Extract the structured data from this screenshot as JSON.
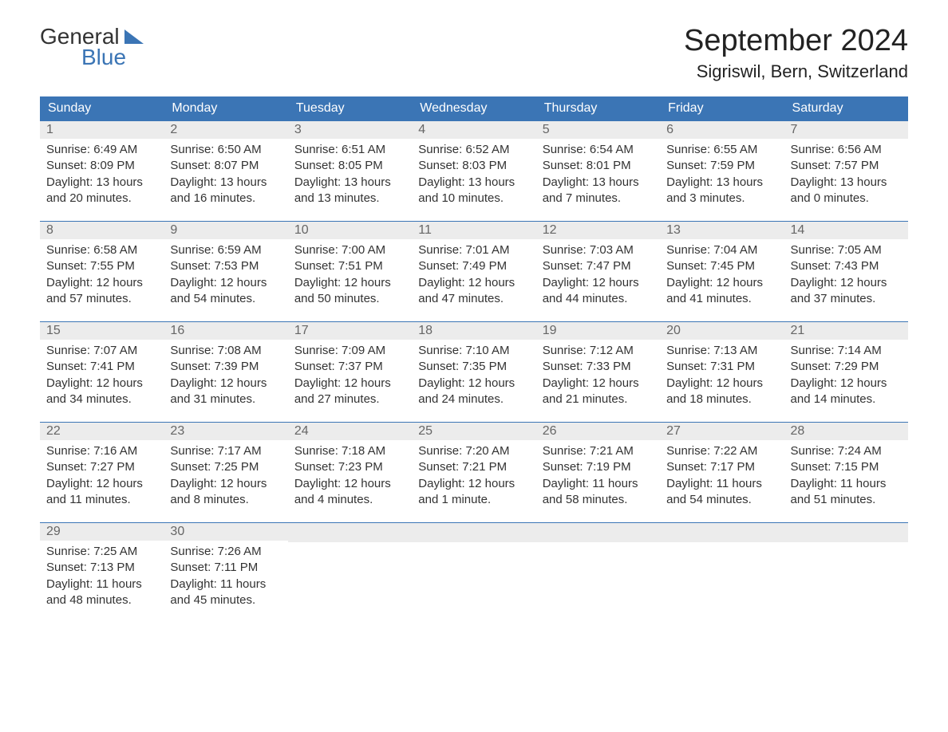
{
  "logo": {
    "text_general": "General",
    "text_blue": "Blue"
  },
  "title": "September 2024",
  "location": "Sigriswil, Bern, Switzerland",
  "colors": {
    "header_bg": "#3b75b5",
    "header_text": "#ffffff",
    "daybar_bg": "#ececec",
    "daybar_text": "#666666",
    "body_text": "#333333",
    "border": "#3b75b5"
  },
  "weekdays": [
    "Sunday",
    "Monday",
    "Tuesday",
    "Wednesday",
    "Thursday",
    "Friday",
    "Saturday"
  ],
  "weeks": [
    [
      {
        "day": "1",
        "sunrise": "Sunrise: 6:49 AM",
        "sunset": "Sunset: 8:09 PM",
        "daylight1": "Daylight: 13 hours",
        "daylight2": "and 20 minutes."
      },
      {
        "day": "2",
        "sunrise": "Sunrise: 6:50 AM",
        "sunset": "Sunset: 8:07 PM",
        "daylight1": "Daylight: 13 hours",
        "daylight2": "and 16 minutes."
      },
      {
        "day": "3",
        "sunrise": "Sunrise: 6:51 AM",
        "sunset": "Sunset: 8:05 PM",
        "daylight1": "Daylight: 13 hours",
        "daylight2": "and 13 minutes."
      },
      {
        "day": "4",
        "sunrise": "Sunrise: 6:52 AM",
        "sunset": "Sunset: 8:03 PM",
        "daylight1": "Daylight: 13 hours",
        "daylight2": "and 10 minutes."
      },
      {
        "day": "5",
        "sunrise": "Sunrise: 6:54 AM",
        "sunset": "Sunset: 8:01 PM",
        "daylight1": "Daylight: 13 hours",
        "daylight2": "and 7 minutes."
      },
      {
        "day": "6",
        "sunrise": "Sunrise: 6:55 AM",
        "sunset": "Sunset: 7:59 PM",
        "daylight1": "Daylight: 13 hours",
        "daylight2": "and 3 minutes."
      },
      {
        "day": "7",
        "sunrise": "Sunrise: 6:56 AM",
        "sunset": "Sunset: 7:57 PM",
        "daylight1": "Daylight: 13 hours",
        "daylight2": "and 0 minutes."
      }
    ],
    [
      {
        "day": "8",
        "sunrise": "Sunrise: 6:58 AM",
        "sunset": "Sunset: 7:55 PM",
        "daylight1": "Daylight: 12 hours",
        "daylight2": "and 57 minutes."
      },
      {
        "day": "9",
        "sunrise": "Sunrise: 6:59 AM",
        "sunset": "Sunset: 7:53 PM",
        "daylight1": "Daylight: 12 hours",
        "daylight2": "and 54 minutes."
      },
      {
        "day": "10",
        "sunrise": "Sunrise: 7:00 AM",
        "sunset": "Sunset: 7:51 PM",
        "daylight1": "Daylight: 12 hours",
        "daylight2": "and 50 minutes."
      },
      {
        "day": "11",
        "sunrise": "Sunrise: 7:01 AM",
        "sunset": "Sunset: 7:49 PM",
        "daylight1": "Daylight: 12 hours",
        "daylight2": "and 47 minutes."
      },
      {
        "day": "12",
        "sunrise": "Sunrise: 7:03 AM",
        "sunset": "Sunset: 7:47 PM",
        "daylight1": "Daylight: 12 hours",
        "daylight2": "and 44 minutes."
      },
      {
        "day": "13",
        "sunrise": "Sunrise: 7:04 AM",
        "sunset": "Sunset: 7:45 PM",
        "daylight1": "Daylight: 12 hours",
        "daylight2": "and 41 minutes."
      },
      {
        "day": "14",
        "sunrise": "Sunrise: 7:05 AM",
        "sunset": "Sunset: 7:43 PM",
        "daylight1": "Daylight: 12 hours",
        "daylight2": "and 37 minutes."
      }
    ],
    [
      {
        "day": "15",
        "sunrise": "Sunrise: 7:07 AM",
        "sunset": "Sunset: 7:41 PM",
        "daylight1": "Daylight: 12 hours",
        "daylight2": "and 34 minutes."
      },
      {
        "day": "16",
        "sunrise": "Sunrise: 7:08 AM",
        "sunset": "Sunset: 7:39 PM",
        "daylight1": "Daylight: 12 hours",
        "daylight2": "and 31 minutes."
      },
      {
        "day": "17",
        "sunrise": "Sunrise: 7:09 AM",
        "sunset": "Sunset: 7:37 PM",
        "daylight1": "Daylight: 12 hours",
        "daylight2": "and 27 minutes."
      },
      {
        "day": "18",
        "sunrise": "Sunrise: 7:10 AM",
        "sunset": "Sunset: 7:35 PM",
        "daylight1": "Daylight: 12 hours",
        "daylight2": "and 24 minutes."
      },
      {
        "day": "19",
        "sunrise": "Sunrise: 7:12 AM",
        "sunset": "Sunset: 7:33 PM",
        "daylight1": "Daylight: 12 hours",
        "daylight2": "and 21 minutes."
      },
      {
        "day": "20",
        "sunrise": "Sunrise: 7:13 AM",
        "sunset": "Sunset: 7:31 PM",
        "daylight1": "Daylight: 12 hours",
        "daylight2": "and 18 minutes."
      },
      {
        "day": "21",
        "sunrise": "Sunrise: 7:14 AM",
        "sunset": "Sunset: 7:29 PM",
        "daylight1": "Daylight: 12 hours",
        "daylight2": "and 14 minutes."
      }
    ],
    [
      {
        "day": "22",
        "sunrise": "Sunrise: 7:16 AM",
        "sunset": "Sunset: 7:27 PM",
        "daylight1": "Daylight: 12 hours",
        "daylight2": "and 11 minutes."
      },
      {
        "day": "23",
        "sunrise": "Sunrise: 7:17 AM",
        "sunset": "Sunset: 7:25 PM",
        "daylight1": "Daylight: 12 hours",
        "daylight2": "and 8 minutes."
      },
      {
        "day": "24",
        "sunrise": "Sunrise: 7:18 AM",
        "sunset": "Sunset: 7:23 PM",
        "daylight1": "Daylight: 12 hours",
        "daylight2": "and 4 minutes."
      },
      {
        "day": "25",
        "sunrise": "Sunrise: 7:20 AM",
        "sunset": "Sunset: 7:21 PM",
        "daylight1": "Daylight: 12 hours",
        "daylight2": "and 1 minute."
      },
      {
        "day": "26",
        "sunrise": "Sunrise: 7:21 AM",
        "sunset": "Sunset: 7:19 PM",
        "daylight1": "Daylight: 11 hours",
        "daylight2": "and 58 minutes."
      },
      {
        "day": "27",
        "sunrise": "Sunrise: 7:22 AM",
        "sunset": "Sunset: 7:17 PM",
        "daylight1": "Daylight: 11 hours",
        "daylight2": "and 54 minutes."
      },
      {
        "day": "28",
        "sunrise": "Sunrise: 7:24 AM",
        "sunset": "Sunset: 7:15 PM",
        "daylight1": "Daylight: 11 hours",
        "daylight2": "and 51 minutes."
      }
    ],
    [
      {
        "day": "29",
        "sunrise": "Sunrise: 7:25 AM",
        "sunset": "Sunset: 7:13 PM",
        "daylight1": "Daylight: 11 hours",
        "daylight2": "and 48 minutes."
      },
      {
        "day": "30",
        "sunrise": "Sunrise: 7:26 AM",
        "sunset": "Sunset: 7:11 PM",
        "daylight1": "Daylight: 11 hours",
        "daylight2": "and 45 minutes."
      },
      {
        "empty": true
      },
      {
        "empty": true
      },
      {
        "empty": true
      },
      {
        "empty": true
      },
      {
        "empty": true
      }
    ]
  ]
}
